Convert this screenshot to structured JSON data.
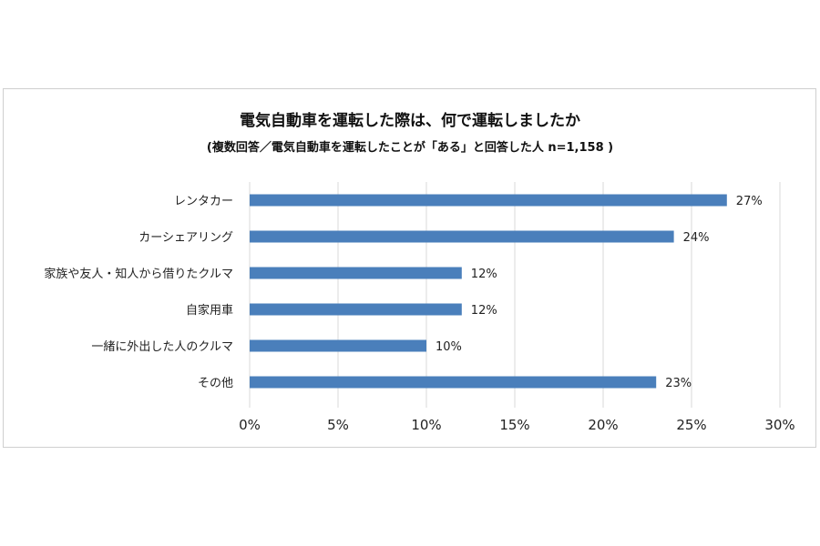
{
  "chart_data": {
    "type": "bar",
    "orientation": "horizontal",
    "title": "電気自動車を運転した際は、何で運転しましたか",
    "subtitle": "(複数回答／電気自動車を運転したことが「ある」と回答した人 n=1,158 )",
    "categories": [
      "レンタカー",
      "カーシェアリング",
      "家族や友人・知人から借りたクルマ",
      "自家用車",
      "一緒に外出した人のクルマ",
      "その他"
    ],
    "values": [
      27,
      24,
      12,
      12,
      10,
      23
    ],
    "value_labels": [
      "27%",
      "24%",
      "12%",
      "12%",
      "10%",
      "23%"
    ],
    "xlim": [
      0,
      30
    ],
    "xticks": [
      "0%",
      "5%",
      "10%",
      "15%",
      "20%",
      "25%",
      "30%"
    ],
    "grid": true,
    "bar_color": "#4a7fbb"
  }
}
